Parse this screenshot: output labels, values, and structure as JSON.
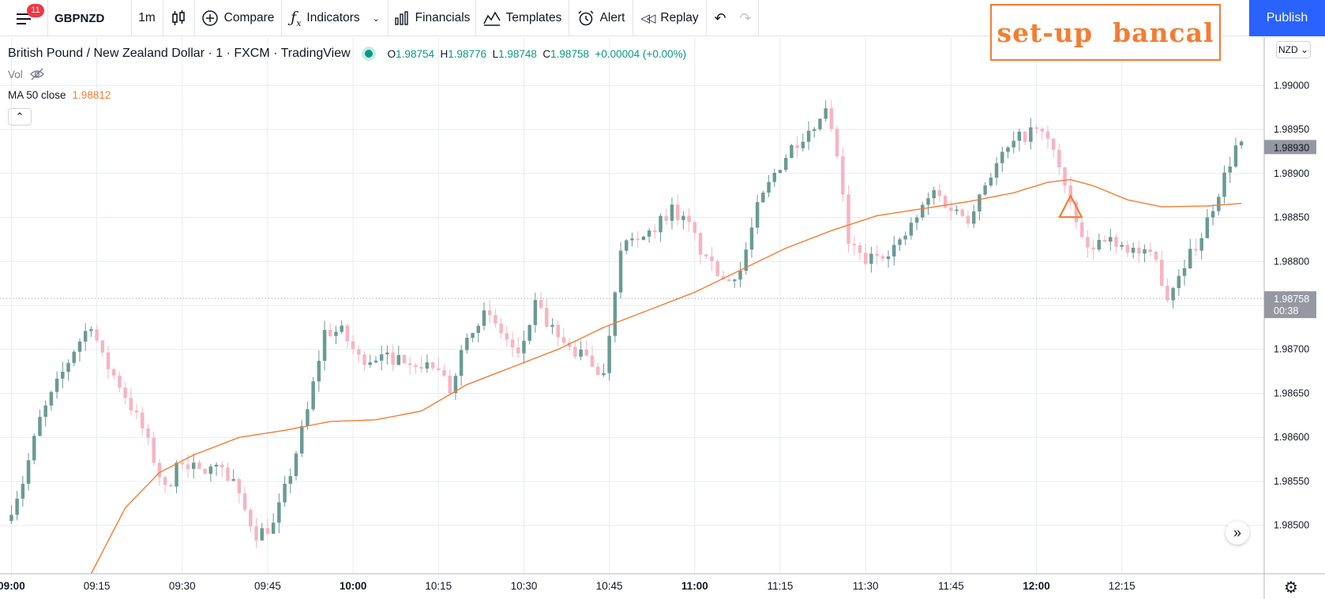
{
  "toolbar": {
    "notifications": "11",
    "symbol": "GBPNZD",
    "interval": "1m",
    "compare": "Compare",
    "indicators": "Indicators",
    "financials": "Financials",
    "templates": "Templates",
    "alert": "Alert",
    "replay": "Replay",
    "publish": "Publish"
  },
  "overlay_text": "set-up  bancal",
  "legend": {
    "title": "British Pound / New Zealand Dollar · 1 · FXCM · TradingView",
    "o_label": "O",
    "o": "1.98754",
    "h_label": "H",
    "h": "1.98776",
    "l_label": "L",
    "l": "1.98748",
    "c_label": "C",
    "c": "1.98758",
    "change": "+0.00004 (+0.00%)",
    "vol": "Vol",
    "ma_label": "MA 50 close",
    "ma_value": "1.98812"
  },
  "currency": "NZD",
  "colors": {
    "up": "#6a9a94",
    "down": "#f7b4c2",
    "ma": "#f57c32",
    "grid": "#e6ecf2",
    "price_tag": "#9598a1"
  },
  "chart_data": {
    "type": "candlestick",
    "symbol": "GBPNZD",
    "interval": "1m",
    "ylim": [
      1.98445,
      1.99055
    ],
    "yticks": [
      "1.99000",
      "1.98950",
      "1.98900",
      "1.98850",
      "1.98800",
      "1.98750",
      "1.98700",
      "1.98650",
      "1.98600",
      "1.98550",
      "1.98500"
    ],
    "xticks": [
      {
        "label": "09:00",
        "bold": true
      },
      {
        "label": "09:15",
        "bold": false
      },
      {
        "label": "09:30",
        "bold": false
      },
      {
        "label": "09:45",
        "bold": false
      },
      {
        "label": "10:00",
        "bold": true
      },
      {
        "label": "10:15",
        "bold": false
      },
      {
        "label": "10:30",
        "bold": false
      },
      {
        "label": "10:45",
        "bold": false
      },
      {
        "label": "11:00",
        "bold": true
      },
      {
        "label": "11:15",
        "bold": false
      },
      {
        "label": "11:30",
        "bold": false
      },
      {
        "label": "11:45",
        "bold": false
      },
      {
        "label": "12:00",
        "bold": true
      },
      {
        "label": "12:15",
        "bold": false
      }
    ],
    "price_labels": {
      "high_mark": "1.98930",
      "last": "1.98758",
      "countdown": "00:38"
    },
    "marker": {
      "type": "triangle",
      "time_index": 186
    },
    "anchors": [
      [
        0,
        1.98505
      ],
      [
        3,
        1.9855
      ],
      [
        6,
        1.9862
      ],
      [
        9,
        1.9866
      ],
      [
        12,
        1.987
      ],
      [
        15,
        1.9873
      ],
      [
        17,
        1.9869
      ],
      [
        20,
        1.9866
      ],
      [
        24,
        1.9861
      ],
      [
        28,
        1.9854
      ],
      [
        31,
        1.98575
      ],
      [
        34,
        1.9856
      ],
      [
        38,
        1.9857
      ],
      [
        41,
        1.9853
      ],
      [
        44,
        1.9849
      ],
      [
        47,
        1.985
      ],
      [
        50,
        1.9856
      ],
      [
        53,
        1.9863
      ],
      [
        56,
        1.9872
      ],
      [
        59,
        1.9872
      ],
      [
        62,
        1.9869
      ],
      [
        65,
        1.9869
      ],
      [
        68,
        1.9869
      ],
      [
        71,
        1.9869
      ],
      [
        75,
        1.9868
      ],
      [
        78,
        1.98655
      ],
      [
        81,
        1.9872
      ],
      [
        84,
        1.9874
      ],
      [
        87,
        1.9872
      ],
      [
        90,
        1.9869
      ],
      [
        93,
        1.9875
      ],
      [
        96,
        1.9872
      ],
      [
        99,
        1.987
      ],
      [
        102,
        1.9869
      ],
      [
        105,
        1.9867
      ],
      [
        108,
        1.9882
      ],
      [
        111,
        1.9882
      ],
      [
        114,
        1.9884
      ],
      [
        117,
        1.9886
      ],
      [
        120,
        1.9884
      ],
      [
        123,
        1.988
      ],
      [
        126,
        1.9878
      ],
      [
        129,
        1.9879
      ],
      [
        132,
        1.9886
      ],
      [
        135,
        1.989
      ],
      [
        138,
        1.9893
      ],
      [
        141,
        1.9895
      ],
      [
        144,
        1.9897
      ],
      [
        146,
        1.9892
      ],
      [
        148,
        1.9882
      ],
      [
        151,
        1.988
      ],
      [
        154,
        1.9881
      ],
      [
        157,
        1.9882
      ],
      [
        160,
        1.9885
      ],
      [
        163,
        1.9888
      ],
      [
        166,
        1.9886
      ],
      [
        169,
        1.9885
      ],
      [
        172,
        1.9889
      ],
      [
        175,
        1.9892
      ],
      [
        178,
        1.9894
      ],
      [
        181,
        1.9895
      ],
      [
        184,
        1.9893
      ],
      [
        187,
        1.9886
      ],
      [
        190,
        1.9881
      ],
      [
        193,
        1.9883
      ],
      [
        196,
        1.9882
      ],
      [
        199,
        1.9881
      ],
      [
        202,
        1.988
      ],
      [
        204,
        1.9876
      ],
      [
        207,
        1.988
      ],
      [
        210,
        1.9883
      ],
      [
        213,
        1.9888
      ],
      [
        216,
        1.9893
      ]
    ],
    "ma_anchors": [
      [
        14,
        1.98445
      ],
      [
        20,
        1.9852
      ],
      [
        26,
        1.9856
      ],
      [
        32,
        1.9858
      ],
      [
        40,
        1.986
      ],
      [
        48,
        1.98608
      ],
      [
        56,
        1.98618
      ],
      [
        64,
        1.9862
      ],
      [
        72,
        1.9863
      ],
      [
        80,
        1.9866
      ],
      [
        88,
        1.9868
      ],
      [
        96,
        1.987
      ],
      [
        104,
        1.98725
      ],
      [
        112,
        1.98745
      ],
      [
        120,
        1.98765
      ],
      [
        128,
        1.9879
      ],
      [
        136,
        1.98815
      ],
      [
        144,
        1.98835
      ],
      [
        152,
        1.98852
      ],
      [
        160,
        1.9886
      ],
      [
        168,
        1.98868
      ],
      [
        176,
        1.98878
      ],
      [
        182,
        1.9889
      ],
      [
        186,
        1.98893
      ],
      [
        190,
        1.98886
      ],
      [
        196,
        1.9887
      ],
      [
        202,
        1.98862
      ],
      [
        210,
        1.98863
      ],
      [
        216,
        1.98866
      ]
    ]
  }
}
